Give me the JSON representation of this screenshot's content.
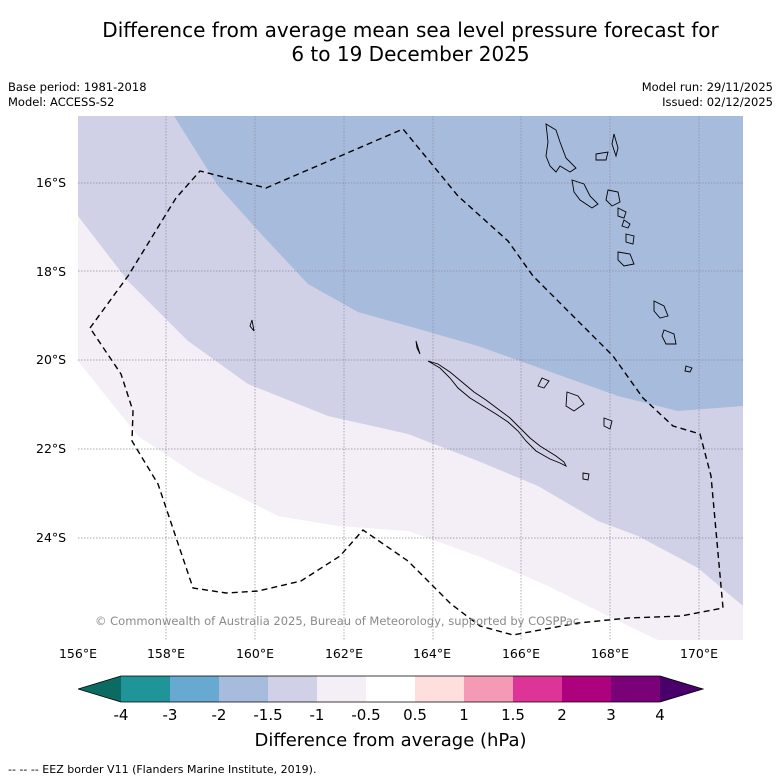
{
  "header": {
    "title_line1": "Difference from average mean sea level pressure forecast for",
    "title_line2": "6 to 19 December 2025"
  },
  "meta": {
    "base_period": "Base period: 1981-2018",
    "model": "Model: ACCESS-S2",
    "model_run": "Model run: 29/11/2025",
    "issued": "Issued: 02/12/2025"
  },
  "map": {
    "copyright": "© Commonwealth of Australia 2025, Bureau of Meteorology, supported by COSPPac",
    "lat_labels": [
      "16°S",
      "18°S",
      "20°S",
      "22°S",
      "24°S"
    ],
    "lon_labels": [
      "156°E",
      "158°E",
      "160°E",
      "162°E",
      "164°E",
      "166°E",
      "168°E",
      "170°E"
    ]
  },
  "colorbar": {
    "ticks": [
      "-4",
      "-3",
      "-2",
      "-1.5",
      "-1",
      "-0.5",
      "0.5",
      "1",
      "1.5",
      "2",
      "3",
      "4"
    ],
    "colors": [
      "#0b6b63",
      "#1f9599",
      "#67a9d1",
      "#a7bbdc",
      "#d0d1e6",
      "#f4eef6",
      "#ffffff",
      "#ffdede",
      "#f59ab4",
      "#dd3497",
      "#ae017e",
      "#7a0177",
      "#49006a"
    ],
    "label": "Difference from average (hPa)"
  },
  "footnote": "--  --  -- EEZ border V11 (Flanders Marine Institute, 2019)."
}
